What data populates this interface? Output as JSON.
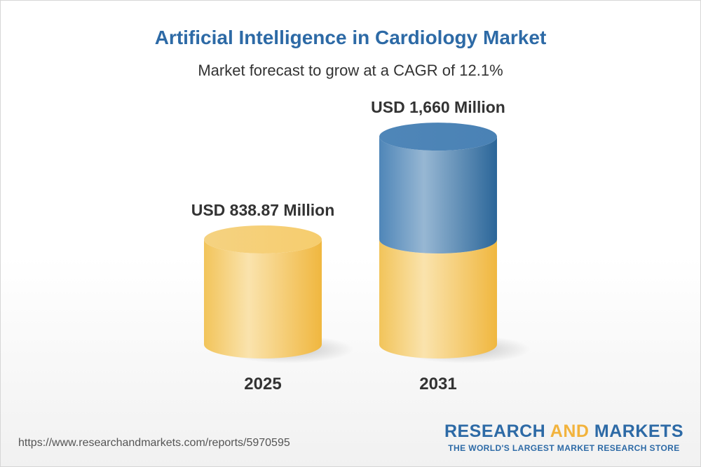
{
  "header": {
    "title": "Artificial Intelligence in Cardiology Market",
    "subtitle": "Market forecast to grow at a CAGR of 12.1%"
  },
  "chart_data": {
    "type": "bar",
    "title": "Artificial Intelligence in Cardiology Market",
    "subtitle": "Market forecast to grow at a CAGR of 12.1%",
    "categories": [
      "2025",
      "2031"
    ],
    "values": [
      838.87,
      1660
    ],
    "value_labels": [
      "USD 838.87 Million",
      "USD 1,660 Million"
    ],
    "unit": "USD Million",
    "xlabel": "",
    "ylabel": "",
    "grid": false,
    "legend": "none",
    "colors": {
      "base": "#f2c45a",
      "growth": "#3f78ad"
    }
  },
  "footer": {
    "source_url": "https://www.researchandmarkets.com/reports/5970595",
    "brand_left": "RESEARCH",
    "brand_and": "AND",
    "brand_right": "MARKETS",
    "tagline": "THE WORLD'S LARGEST MARKET RESEARCH STORE"
  }
}
